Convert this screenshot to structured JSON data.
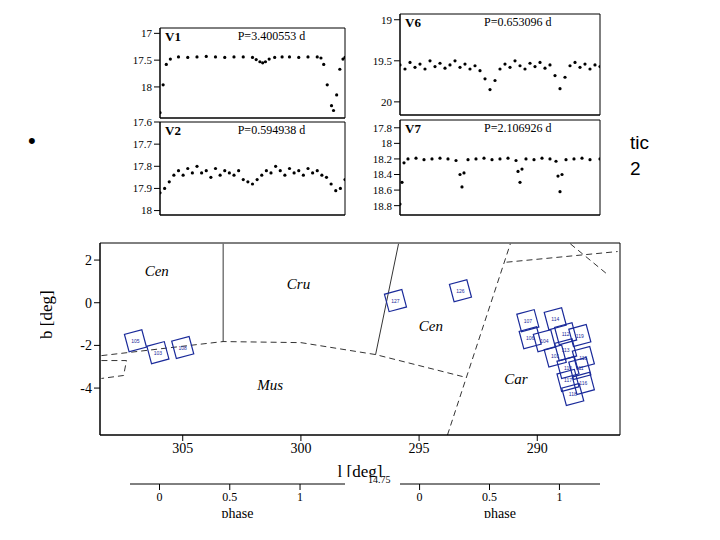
{
  "slide_text": {
    "bullet": "•",
    "fragments": [
      "tic",
      "2"
    ]
  },
  "chart_data": [
    {
      "type": "scatter",
      "title": "V1",
      "subtitle": "P=3.400553 d",
      "color": "#000000",
      "marker": "circle",
      "tick_labels": "y",
      "x": [
        0,
        0.017,
        0.034,
        0.056,
        0.1,
        0.15,
        0.2,
        0.25,
        0.3,
        0.35,
        0.4,
        0.45,
        0.5,
        0.52,
        0.54,
        0.555,
        0.57,
        0.59,
        0.62,
        0.66,
        0.7,
        0.75,
        0.8,
        0.85,
        0.87,
        0.885,
        0.904,
        0.927,
        0.938,
        0.955,
        0.972,
        0.989,
        1.0
      ],
      "values": [
        18.48,
        17.96,
        17.58,
        17.48,
        17.44,
        17.45,
        17.44,
        17.43,
        17.44,
        17.45,
        17.44,
        17.44,
        17.45,
        17.49,
        17.53,
        17.55,
        17.53,
        17.48,
        17.45,
        17.44,
        17.44,
        17.45,
        17.44,
        17.44,
        17.46,
        17.58,
        17.96,
        18.35,
        18.44,
        18.15,
        17.67,
        17.48,
        17.45
      ],
      "xlim": [
        0,
        1
      ],
      "xticks": [],
      "ylim": [
        18.58,
        16.9
      ],
      "yticks": [
        17,
        17.5,
        18
      ]
    },
    {
      "type": "scatter",
      "title": "V2",
      "subtitle": "P=0.594938 d",
      "color": "#000000",
      "marker": "circle",
      "tick_labels": "y",
      "x": [
        0,
        0.025,
        0.05,
        0.075,
        0.1,
        0.125,
        0.15,
        0.175,
        0.2,
        0.225,
        0.25,
        0.275,
        0.3,
        0.325,
        0.35,
        0.375,
        0.4,
        0.425,
        0.45,
        0.475,
        0.5,
        0.525,
        0.55,
        0.575,
        0.6,
        0.625,
        0.65,
        0.675,
        0.7,
        0.725,
        0.75,
        0.775,
        0.8,
        0.825,
        0.85,
        0.875,
        0.9,
        0.925,
        0.95,
        0.975,
        1.0
      ],
      "values": [
        17.92,
        17.9,
        17.87,
        17.84,
        17.82,
        17.84,
        17.81,
        17.83,
        17.8,
        17.83,
        17.82,
        17.85,
        17.81,
        17.84,
        17.82,
        17.83,
        17.84,
        17.82,
        17.86,
        17.87,
        17.88,
        17.86,
        17.84,
        17.82,
        17.83,
        17.8,
        17.82,
        17.84,
        17.81,
        17.83,
        17.82,
        17.84,
        17.81,
        17.83,
        17.82,
        17.84,
        17.85,
        17.88,
        17.91,
        17.9,
        17.86
      ],
      "xlim": [
        0,
        1
      ],
      "xticks": [],
      "ylim": [
        18.02,
        17.6
      ],
      "yticks": [
        17.6,
        17.7,
        17.8,
        17.9,
        18
      ]
    },
    {
      "type": "scatter",
      "title": "V6",
      "subtitle": "P=0.653096 d",
      "color": "#000000",
      "marker": "circle",
      "tick_labels": "y",
      "x": [
        0,
        0.025,
        0.05,
        0.075,
        0.1,
        0.125,
        0.15,
        0.175,
        0.2,
        0.225,
        0.25,
        0.275,
        0.3,
        0.325,
        0.35,
        0.375,
        0.4,
        0.425,
        0.45,
        0.475,
        0.5,
        0.525,
        0.55,
        0.575,
        0.6,
        0.625,
        0.65,
        0.675,
        0.7,
        0.725,
        0.75,
        0.775,
        0.8,
        0.825,
        0.85,
        0.875,
        0.9,
        0.925,
        0.95,
        0.975,
        1.0
      ],
      "values": [
        19.55,
        19.6,
        19.52,
        19.58,
        19.54,
        19.6,
        19.5,
        19.57,
        19.53,
        19.59,
        19.55,
        19.5,
        19.58,
        19.54,
        19.6,
        19.56,
        19.62,
        19.72,
        19.85,
        19.74,
        19.6,
        19.54,
        19.58,
        19.5,
        19.56,
        19.6,
        19.53,
        19.57,
        19.52,
        19.59,
        19.55,
        19.68,
        19.84,
        19.7,
        19.56,
        19.52,
        19.58,
        19.54,
        19.6,
        19.55,
        19.57
      ],
      "xlim": [
        0,
        1
      ],
      "xticks": [],
      "ylim": [
        20.16,
        18.93
      ],
      "yticks": [
        19,
        19.5,
        20
      ]
    },
    {
      "type": "scatter",
      "title": "V7",
      "subtitle": "P=2.106926 d",
      "color": "#000000",
      "marker": "circle",
      "tick_labels": "y",
      "x": [
        0,
        0.01,
        0.02,
        0.04,
        0.08,
        0.12,
        0.16,
        0.2,
        0.24,
        0.28,
        0.3,
        0.31,
        0.32,
        0.34,
        0.38,
        0.42,
        0.46,
        0.5,
        0.54,
        0.58,
        0.59,
        0.6,
        0.61,
        0.63,
        0.67,
        0.71,
        0.75,
        0.78,
        0.79,
        0.8,
        0.81,
        0.83,
        0.87,
        0.91,
        0.95,
        1.0
      ],
      "values": [
        18.78,
        18.5,
        18.25,
        18.2,
        18.19,
        18.21,
        18.2,
        18.19,
        18.2,
        18.22,
        18.4,
        18.56,
        18.38,
        18.21,
        18.2,
        18.19,
        18.21,
        18.2,
        18.19,
        18.22,
        18.36,
        18.5,
        18.33,
        18.2,
        18.21,
        18.19,
        18.2,
        18.23,
        18.42,
        18.62,
        18.4,
        18.21,
        18.2,
        18.19,
        18.21,
        18.2
      ],
      "xlim": [
        0,
        1
      ],
      "xticks": [],
      "ylim": [
        18.92,
        17.7
      ],
      "yticks": [
        17.8,
        18,
        18.2,
        18.4,
        18.6,
        18.8
      ]
    },
    {
      "type": "scatter",
      "xlabel": "l [deg]",
      "ylabel": "b [deg]",
      "color": "#1a2a9a",
      "marker": "square",
      "x": [
        307.0,
        306.05,
        305.0,
        296.0,
        293.25,
        290.4,
        289.24,
        288.8,
        288.2,
        290.3,
        289.7,
        288.8,
        289.24,
        288.05,
        288.7,
        288.2,
        288.7,
        288.05,
        288.5
      ],
      "values": [
        -1.78,
        -2.34,
        -2.1,
        0.1,
        0.56,
        -0.84,
        -0.75,
        -1.45,
        -1.54,
        -1.64,
        -1.78,
        -2.2,
        -2.5,
        -2.57,
        -3.04,
        -3.08,
        -3.64,
        -3.78,
        -4.3
      ],
      "labels": [
        "105",
        "103",
        "108",
        "127",
        "126",
        "107",
        "114",
        "112",
        "119",
        "106",
        "104",
        "113",
        "101",
        "115",
        "110",
        "111",
        "117",
        "116",
        "118"
      ],
      "xlim": [
        308.5,
        286.5
      ],
      "xticks": [
        305,
        300,
        295,
        290
      ],
      "ylim": [
        -6.2,
        2.8
      ],
      "yticks": [
        -4,
        -2,
        0,
        2
      ],
      "regions": [
        {
          "label": "Cen",
          "x": 306.1,
          "y": 1.26
        },
        {
          "label": "Cru",
          "x": 300.1,
          "y": 0.65
        },
        {
          "label": "Cen",
          "x": 294.5,
          "y": -1.31
        },
        {
          "label": "Mus",
          "x": 301.3,
          "y": -4.11
        },
        {
          "label": "Car",
          "x": 290.9,
          "y": -3.79
        }
      ],
      "boundaries": [
        {
          "line_style": "solid",
          "x": [
            303.29,
            303.29
          ],
          "y": [
            2.76,
            -1.82
          ]
        },
        {
          "line_style": "solid",
          "x": [
            296.84,
            295.87
          ],
          "y": [
            -2.43,
            2.76
          ]
        },
        {
          "line_style": "dashed",
          "x": [
            308.44,
            303.29,
            300,
            296.84,
            293.16
          ],
          "y": [
            -2.48,
            -1.82,
            -1.87,
            -2.43,
            -3.46
          ]
        },
        {
          "line_style": "dashed",
          "x": [
            293.8,
            291.14
          ],
          "y": [
            -6.2,
            2.76
          ]
        },
        {
          "line_style": "dashed",
          "x": [
            291.3,
            286.6
          ],
          "y": [
            1.9,
            2.4
          ]
        },
        {
          "line_style": "dashed",
          "x": [
            288.6,
            287.0
          ],
          "y": [
            2.76,
            1.3
          ]
        },
        {
          "line_style": "dashed",
          "x": [
            308.44,
            307.38,
            307.5,
            308.44
          ],
          "y": [
            -2.71,
            -2.71,
            -3.41,
            -3.55
          ]
        }
      ]
    },
    {
      "type": "scatter",
      "xlabel": "phase",
      "x": [],
      "values": [],
      "xlim": [
        -0.21,
        1.32
      ],
      "xticks": [
        0,
        0.5,
        1
      ],
      "tick_labels": "x"
    },
    {
      "type": "scatter",
      "xlabel": "phase",
      "x": [],
      "values": [],
      "xlim": [
        -0.14,
        1.29
      ],
      "xticks": [
        0,
        0.5,
        1
      ],
      "tick_labels": "x",
      "annotations": [
        "14.75"
      ]
    }
  ]
}
